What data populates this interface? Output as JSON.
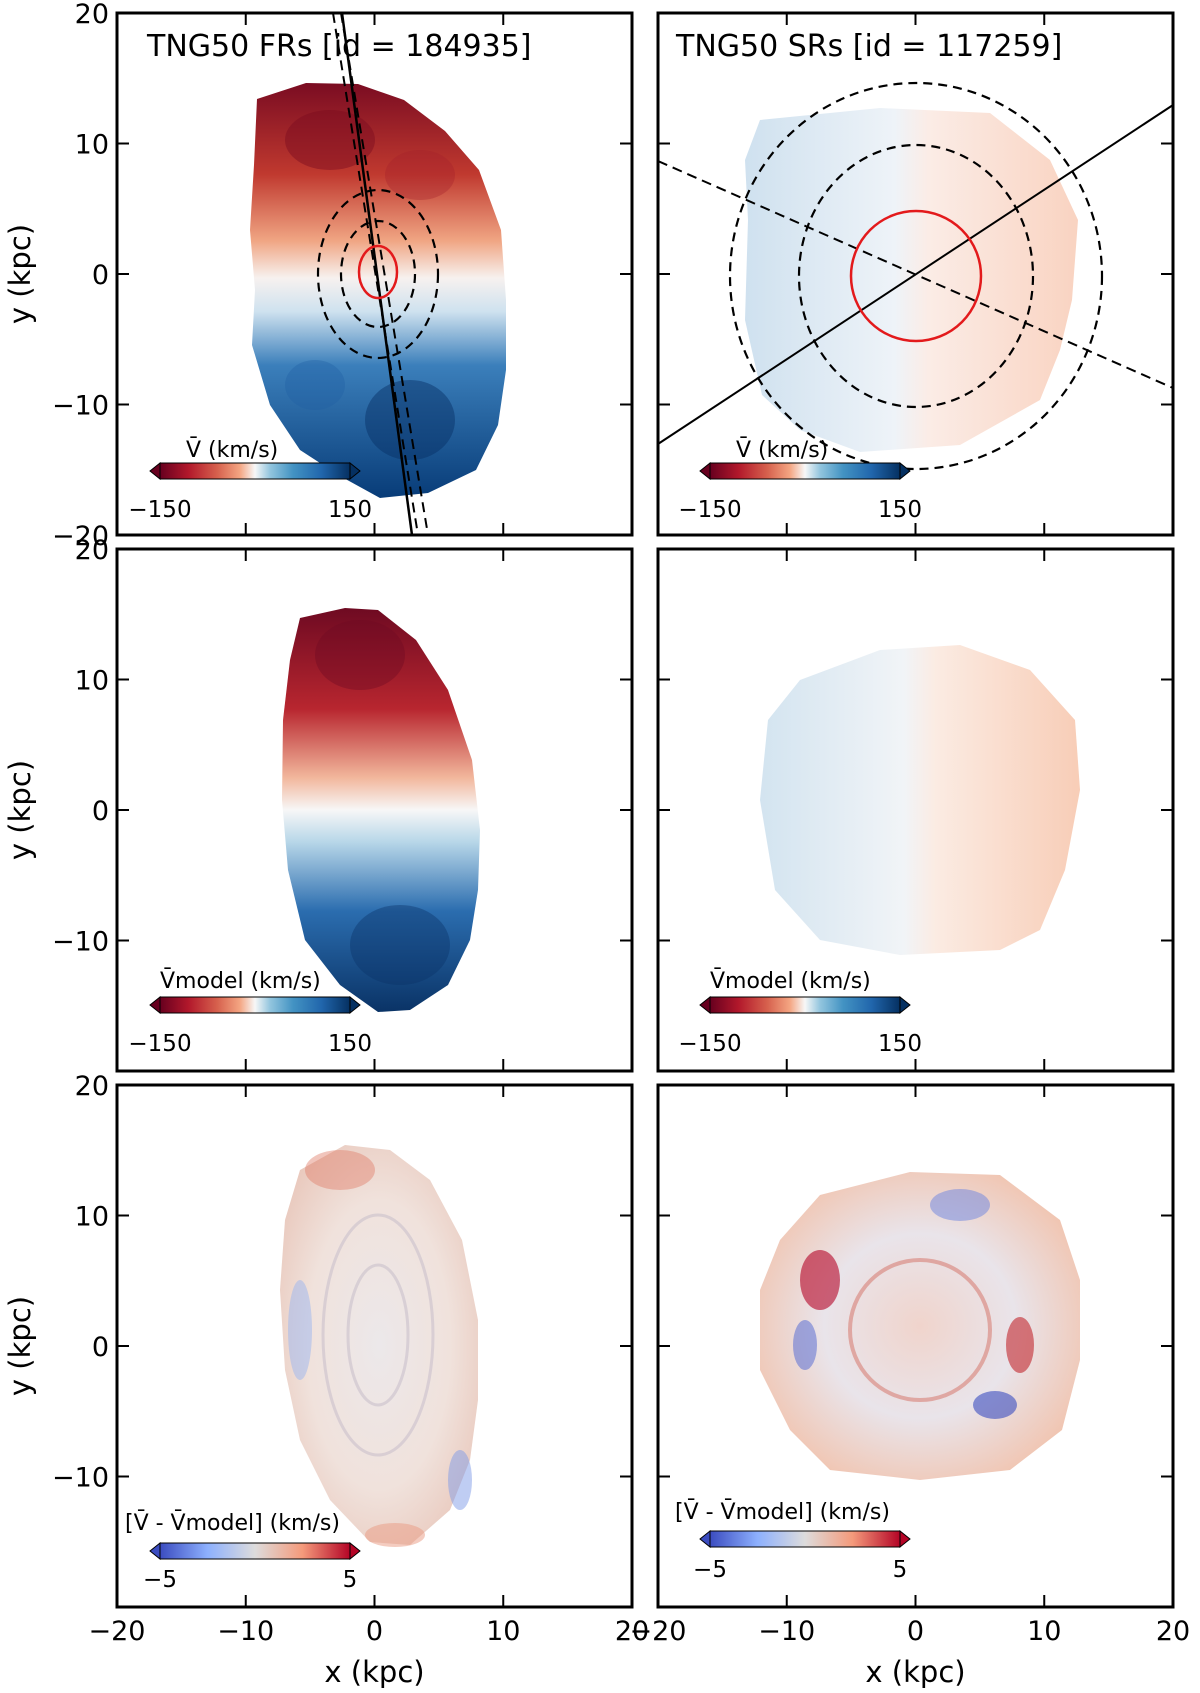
{
  "figure": {
    "xlabel": "x (kpc)",
    "ylabel": "y (kpc)",
    "xlim": [
      -20,
      20
    ],
    "ylim": [
      -20,
      20
    ],
    "ticks": [
      -20,
      -10,
      0,
      10,
      20
    ],
    "tick_labels": [
      "-20",
      "-10",
      "0",
      "10",
      "20"
    ]
  },
  "chart_data": [
    {
      "type": "heatmap",
      "panel": "top-left",
      "quantity": "mean line-of-sight velocity",
      "title": "TNG50 FRs [id = 184935]",
      "colorbar": {
        "label": "V̄ (km/s)",
        "vmin": -150,
        "vmax": 150,
        "ticks": [
          "−150",
          "150"
        ],
        "cmap": "RdBu"
      },
      "overlays": {
        "kinematic_pa_deg": 98,
        "photometric_pa_deg": 95,
        "red_ellipse_radii": [
          1.5,
          3.0
        ],
        "dashed_ellipse_radii": [
          [
            4.2,
            2.8
          ],
          [
            6.5,
            4.6
          ]
        ]
      }
    },
    {
      "type": "heatmap",
      "panel": "top-right",
      "quantity": "mean line-of-sight velocity",
      "title": "TNG50 SRs [id = 117259]",
      "colorbar": {
        "label": "V̄ (km/s)",
        "vmin": -150,
        "vmax": 150,
        "ticks": [
          "−150",
          "150"
        ],
        "cmap": "RdBu"
      },
      "overlays": {
        "kinematic_pa_deg": 32,
        "photometric_pa_deg": -20,
        "red_circle_radius": 5,
        "dashed_ellipse_radii": [
          [
            9.5,
            10.3
          ],
          [
            14.5,
            15.0
          ]
        ]
      }
    },
    {
      "type": "heatmap",
      "panel": "middle-left",
      "quantity": "model velocity",
      "colorbar": {
        "label": "V̄model (km/s)",
        "vmin": -150,
        "vmax": 150,
        "ticks": [
          "−150",
          "150"
        ],
        "cmap": "RdBu"
      }
    },
    {
      "type": "heatmap",
      "panel": "middle-right",
      "quantity": "model velocity",
      "colorbar": {
        "label": "V̄model (km/s)",
        "vmin": -150,
        "vmax": 150,
        "ticks": [
          "−150",
          "150"
        ],
        "cmap": "RdBu"
      }
    },
    {
      "type": "heatmap",
      "panel": "bottom-left",
      "quantity": "residual velocity",
      "colorbar": {
        "label": "[V̄ - V̄model] (km/s)",
        "vmin": -5,
        "vmax": 5,
        "ticks": [
          "−5",
          "5"
        ],
        "cmap": "coolwarm"
      }
    },
    {
      "type": "heatmap",
      "panel": "bottom-right",
      "quantity": "residual velocity",
      "colorbar": {
        "label": "[V̄ - V̄model] (km/s)",
        "vmin": -5,
        "vmax": 5,
        "ticks": [
          "−5",
          "5"
        ],
        "cmap": "coolwarm"
      }
    }
  ],
  "colors": {
    "red_dark": "#67001f",
    "red": "#b2182b",
    "red_mid": "#d6604d",
    "red_light": "#f4a582",
    "neutral": "#f7f7f7",
    "blue_light": "#92c5de",
    "blue_mid": "#4393c3",
    "blue": "#2166ac",
    "blue_dark": "#053061",
    "resid_blue": "#3b4cc0",
    "resid_red": "#b40426",
    "overlay_red": "#e31a1c",
    "frame": "#000000"
  }
}
